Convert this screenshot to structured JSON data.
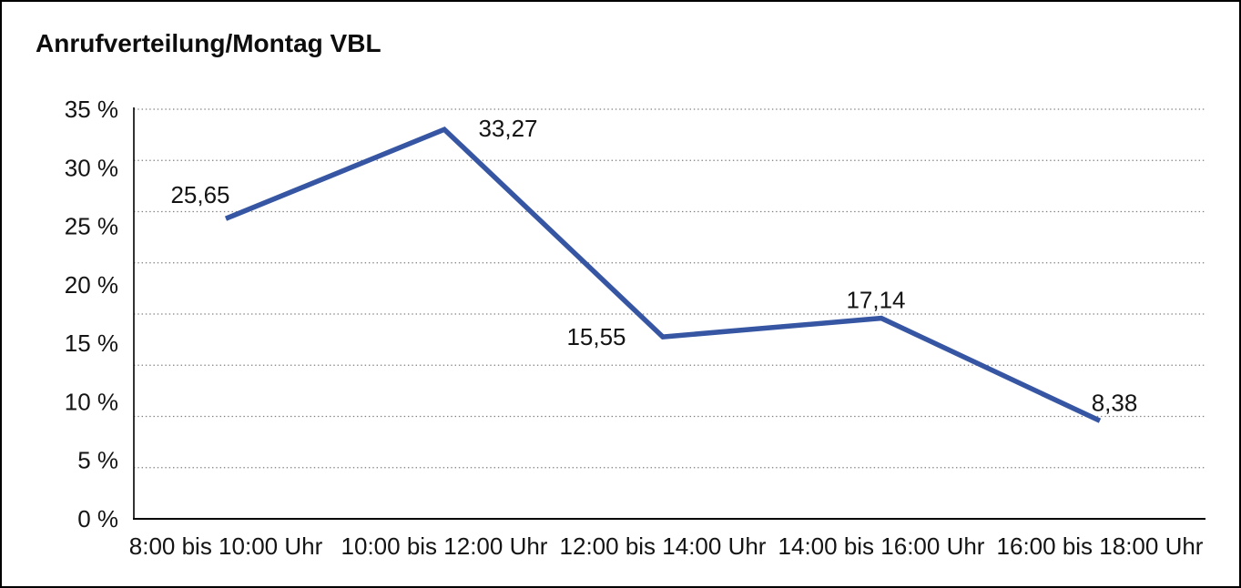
{
  "window": {
    "background": "#ffffff",
    "border_color": "#000000"
  },
  "header": {
    "title": "Anrufverteilung/Montag VBL"
  },
  "chart_data": {
    "type": "line",
    "title": "Anrufverteilung/Montag VBL",
    "categories": [
      "8:00 bis 10:00 Uhr",
      "10:00 bis 12:00 Uhr",
      "12:00 bis 14:00 Uhr",
      "14:00 bis 16:00 Uhr",
      "16:00 bis 18:00 Uhr"
    ],
    "series": [
      {
        "values": [
          25.65,
          33.27,
          15.55,
          17.14,
          8.38
        ],
        "point_labels": [
          "25,65",
          "33,27",
          "15,55",
          "17,14",
          "8,38"
        ],
        "color": "#3656A3"
      }
    ],
    "xlabel": "",
    "ylabel": "",
    "ylim": [
      0,
      35
    ],
    "y_axis": {
      "tick_labels": [
        "35 %",
        "30 %",
        "25 %",
        "20 %",
        "15 %",
        "10 %",
        "5 %",
        "0 %"
      ],
      "tick_values": [
        35,
        30,
        25,
        20,
        15,
        10,
        5,
        0
      ],
      "unit": "%"
    },
    "grid": {
      "style": "dotted",
      "horizontal_line_count": 9,
      "color": "#7f7f7f"
    },
    "legend": "none",
    "colors": {
      "line": "#3656A3",
      "axis": "#000000",
      "text": "#141414"
    }
  }
}
